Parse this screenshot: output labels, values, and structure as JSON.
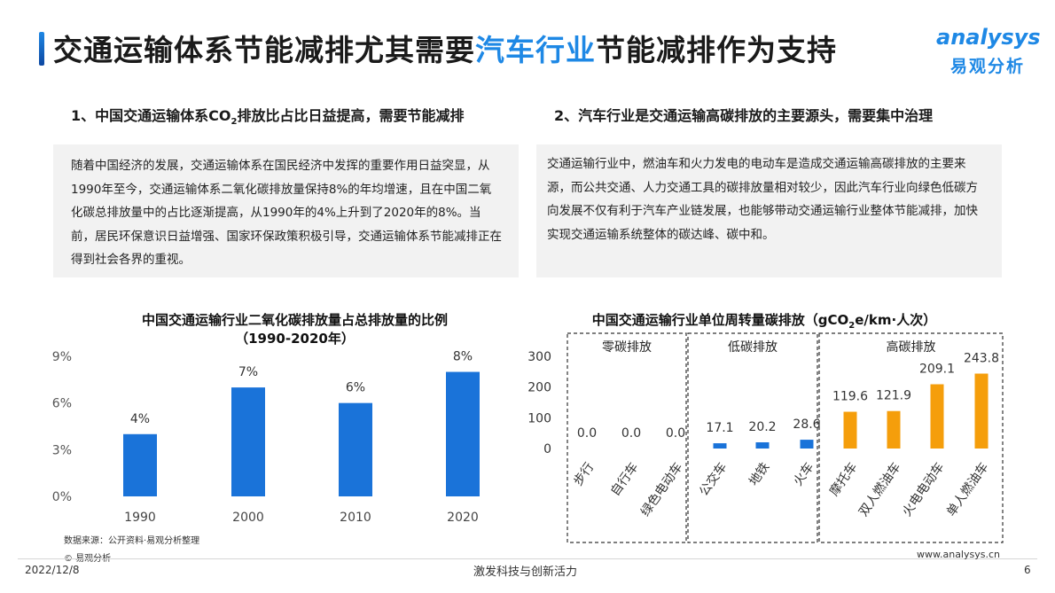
{
  "header": {
    "title_part1": "交通运输体系节能减排尤其需要",
    "title_highlight": "汽车行业",
    "title_part2": "节能减排作为支持",
    "logo_top": "analysys",
    "logo_bottom": "易观分析"
  },
  "section1": {
    "heading_a": "1、中国交通运输体系CO",
    "heading_sub": "2",
    "heading_b": "排放比占比日益提高，需要节能减排",
    "body": "随着中国经济的发展，交通运输体系在国民经济中发挥的重要作用日益突显，从1990年至今，交通运输体系二氧化碳排放量保持8%的年均增速，且在中国二氧化碳总排放量中的占比逐渐提高，从1990年的4%上升到了2020年的8%。当前，居民环保意识日益增强、国家环保政策积极引导，交通运输体系节能减排正在得到社会各界的重视。"
  },
  "section2": {
    "heading": "2、汽车行业是交通运输高碳排放的主要源头，需要集中治理",
    "body": "交通运输行业中，燃油车和火力发电的电动车是造成交通运输高碳排放的主要来源，而公共交通、人力交通工具的碳排放量相对较少，因此汽车行业向绿色低碳方向发展不仅有利于汽车产业链发展，也能够带动交通运输行业整体节能减排，加快实现交通运输系统整体的碳达峰、碳中和。"
  },
  "chart_data": [
    {
      "type": "bar",
      "title": "中国交通运输行业二氧化碳排放量占总排放量的比例",
      "subtitle": "（1990-2020年）",
      "categories": [
        "1990",
        "2000",
        "2010",
        "2020"
      ],
      "values": [
        4,
        7,
        6,
        8
      ],
      "data_labels": [
        "4%",
        "7%",
        "6%",
        "8%"
      ],
      "y_ticks": [
        "0%",
        "3%",
        "6%",
        "9%"
      ],
      "ylim": [
        0,
        9
      ],
      "grid": false,
      "color": "#1a73d9"
    },
    {
      "type": "bar",
      "title_a": "中国交通运输行业单位周转量碳排放（gCO",
      "title_sub": "2",
      "title_b": "e/km·人次）",
      "categories": [
        "步行",
        "自行车",
        "绿色电动车",
        "公交车",
        "地铁",
        "火车",
        "摩托车",
        "双人燃油车",
        "火电电动车",
        "单人燃油车"
      ],
      "values": [
        0.0,
        0.0,
        0.0,
        17.1,
        20.2,
        28.6,
        119.6,
        121.9,
        209.1,
        243.8
      ],
      "data_labels": [
        "0.0",
        "0.0",
        "0.0",
        "17.1",
        "20.2",
        "28.6",
        "119.6",
        "121.9",
        "209.1",
        "243.8"
      ],
      "groups": [
        {
          "name": "零碳排放",
          "members": [
            0,
            1,
            2
          ]
        },
        {
          "name": "低碳排放",
          "members": [
            3,
            4,
            5
          ]
        },
        {
          "name": "高碳排放",
          "members": [
            6,
            7,
            8,
            9
          ]
        }
      ],
      "y_ticks": [
        "0",
        "100",
        "200",
        "300"
      ],
      "ylim": [
        0,
        300
      ],
      "grid": false,
      "colors": {
        "low": "#1a73d9",
        "high": "#f59e0b"
      }
    }
  ],
  "footer": {
    "source": "数据来源：公开资料·易观分析整理",
    "copyright": "© 易观分析",
    "date": "2022/12/8",
    "slogan": "激发科技与创新活力",
    "url": "www.analysys.cn",
    "page": "6"
  }
}
